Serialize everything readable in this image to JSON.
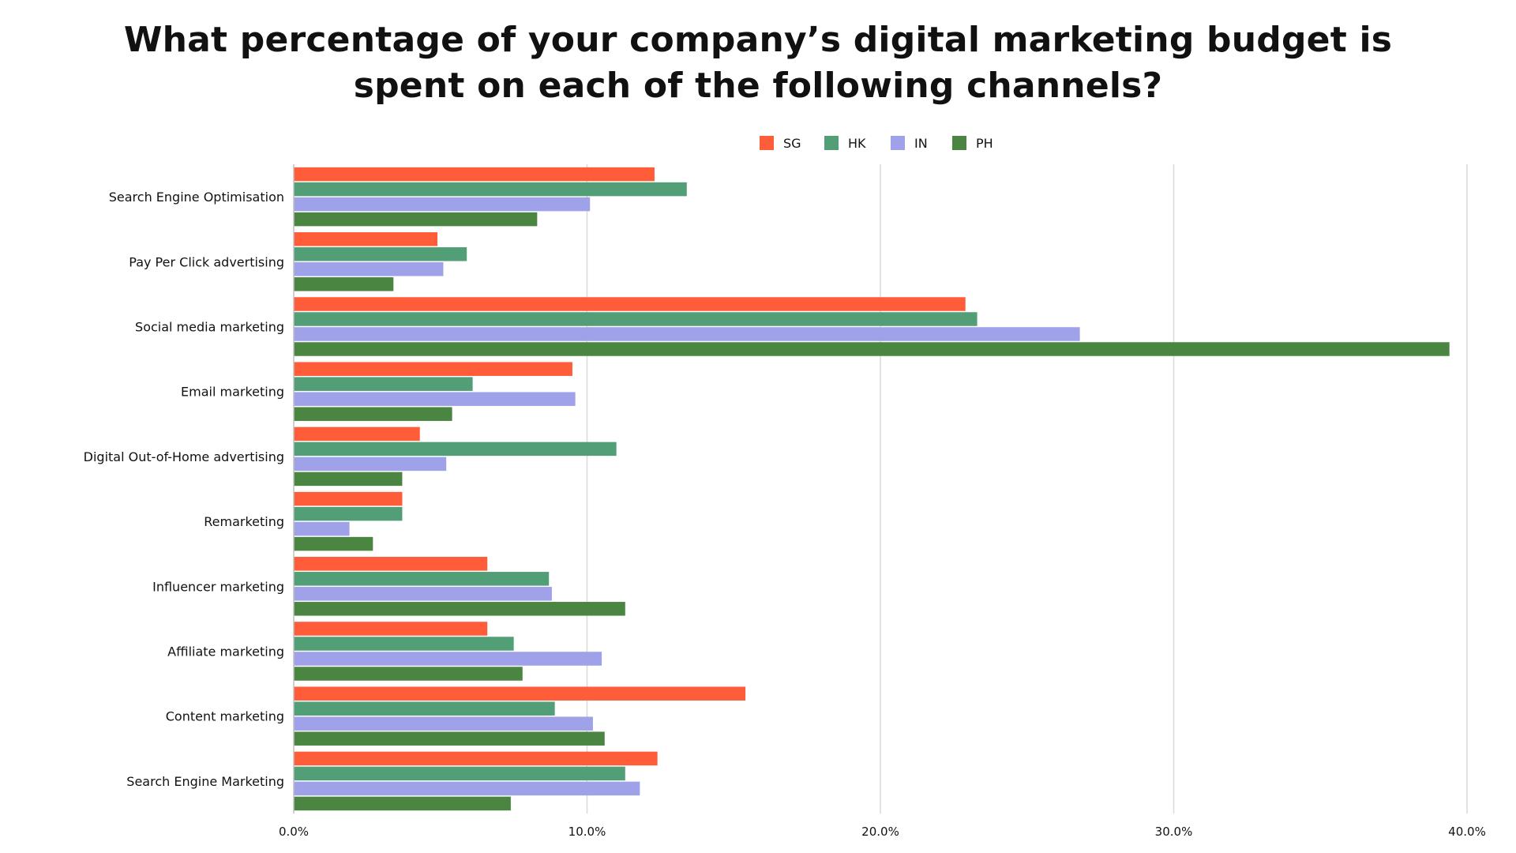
{
  "title": {
    "line1": "What percentage of your company’s digital marketing budget is",
    "line2": "spent on each of the following channels?"
  },
  "chart_data": {
    "type": "bar",
    "orientation": "horizontal",
    "title": "What percentage of your company’s digital marketing budget is spent on each of the following channels?",
    "categories": [
      "Search Engine Optimisation",
      "Pay Per Click advertising",
      "Social media marketing",
      "Email marketing",
      "Digital Out-of-Home advertising",
      "Remarketing",
      "Influencer marketing",
      "Affiliate marketing",
      "Content marketing",
      "Search Engine Marketing"
    ],
    "series": [
      {
        "name": "SG",
        "color": "#FF5C39",
        "values": [
          12.3,
          4.9,
          22.9,
          9.5,
          4.3,
          3.7,
          6.6,
          6.6,
          15.4,
          12.4
        ]
      },
      {
        "name": "HK",
        "color": "#529E76",
        "values": [
          13.4,
          5.9,
          23.3,
          6.1,
          11.0,
          3.7,
          8.7,
          7.5,
          8.9,
          11.3
        ]
      },
      {
        "name": "IN",
        "color": "#9FA2E8",
        "values": [
          10.1,
          5.1,
          26.8,
          9.6,
          5.2,
          1.9,
          8.8,
          10.5,
          10.2,
          11.8
        ]
      },
      {
        "name": "PH",
        "color": "#4A8642",
        "values": [
          8.3,
          3.4,
          39.4,
          5.4,
          3.7,
          2.7,
          11.3,
          7.8,
          10.6,
          7.4
        ]
      }
    ],
    "xlim": [
      0,
      40
    ],
    "x_ticks": [
      "0.0%",
      "10.0%",
      "20.0%",
      "30.0%",
      "40.0%"
    ],
    "xlabel": "",
    "ylabel": "",
    "grid": "vertical",
    "legend_position": "top-center"
  }
}
